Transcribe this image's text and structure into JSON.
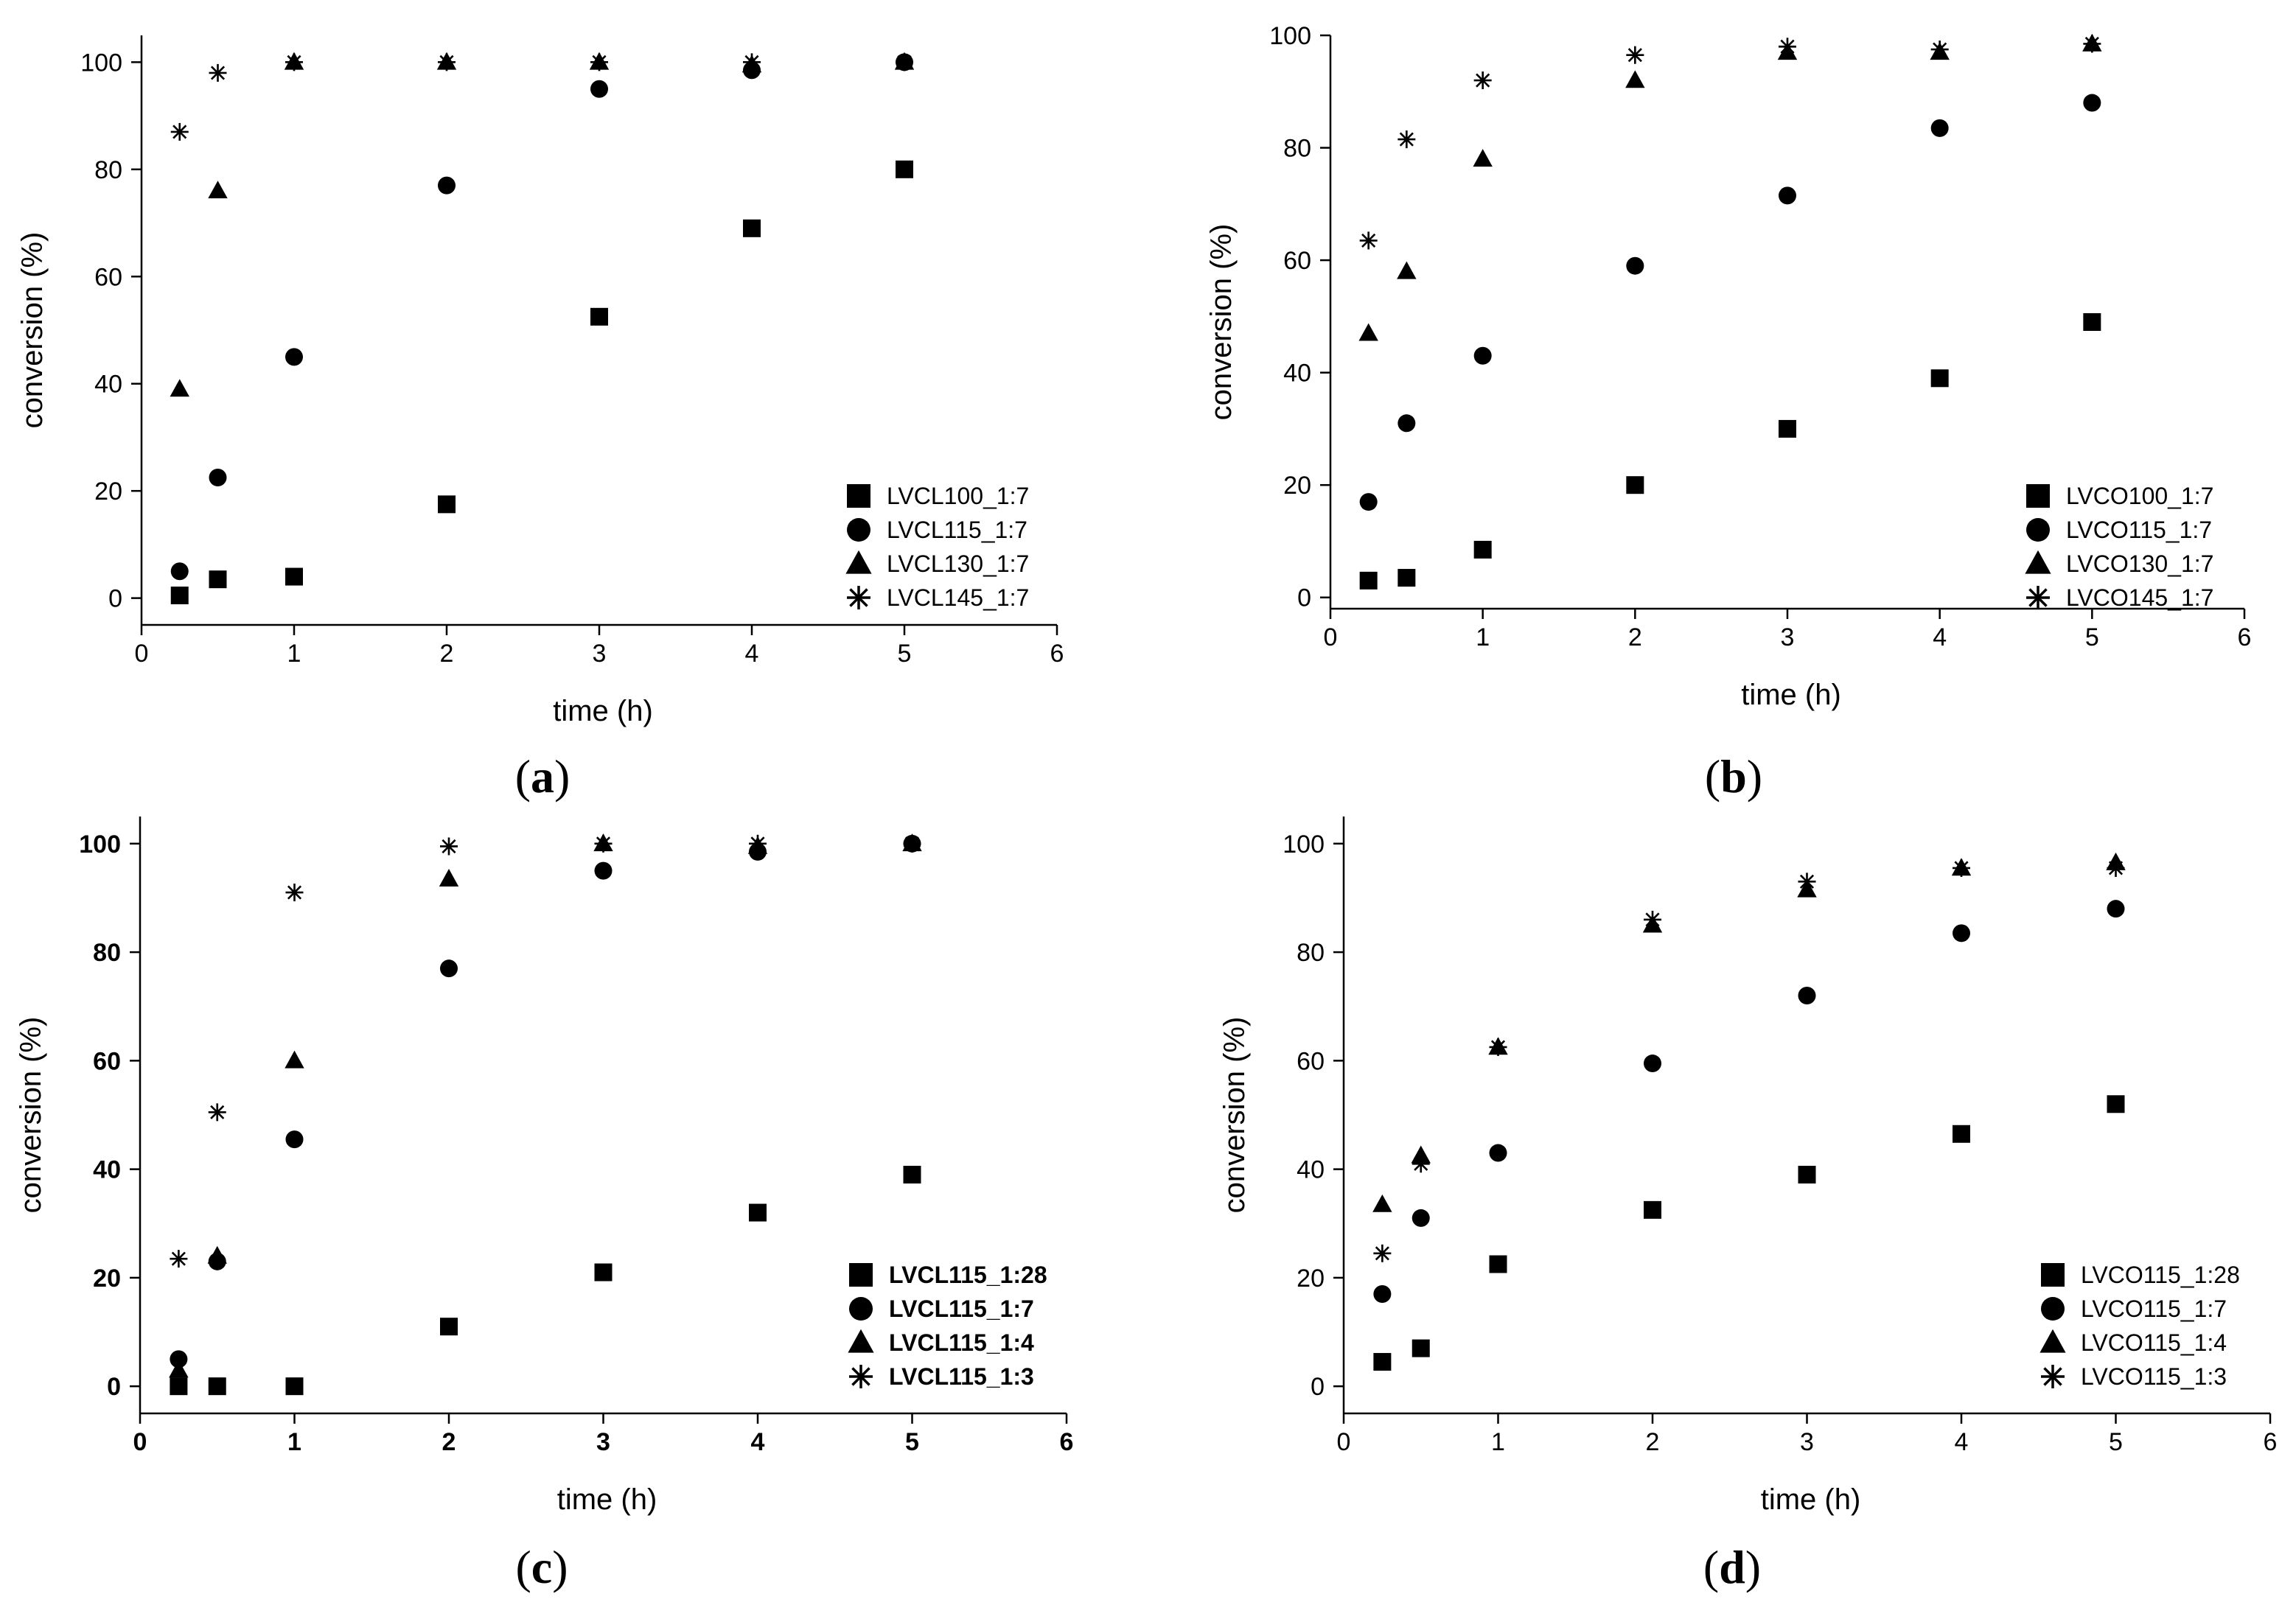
{
  "chart_data": [
    {
      "type": "scatter",
      "panel_label": "(a)",
      "xlabel": "time (h)",
      "ylabel": "conversion (%)",
      "xlim": [
        0,
        6
      ],
      "ylim": [
        -5,
        105
      ],
      "xticks": [
        0,
        1,
        2,
        3,
        4,
        5,
        6
      ],
      "yticks": [
        0,
        20,
        40,
        60,
        80,
        100
      ],
      "legend_position": "bottom-right",
      "grid": false,
      "series": [
        {
          "name": "LVCL100_1:7",
          "marker": "square",
          "x": [
            0.25,
            0.5,
            1,
            2,
            3,
            4,
            5
          ],
          "y": [
            0.5,
            3.5,
            4,
            17.5,
            52.5,
            69,
            80
          ]
        },
        {
          "name": "LVCL115_1:7",
          "marker": "circle",
          "x": [
            0.25,
            0.5,
            1,
            2,
            3,
            4,
            5
          ],
          "y": [
            5,
            22.5,
            45,
            77,
            95,
            98.5,
            100
          ]
        },
        {
          "name": "LVCL130_1:7",
          "marker": "triangle",
          "x": [
            0.25,
            0.5,
            1,
            2,
            3,
            4,
            5
          ],
          "y": [
            39,
            76,
            100,
            100,
            100,
            99.5,
            100
          ]
        },
        {
          "name": "LVCL145_1:7",
          "marker": "asterisk",
          "x": [
            0.25,
            0.5,
            1,
            2,
            3,
            4,
            5
          ],
          "y": [
            87,
            98,
            100,
            100,
            100,
            100,
            100
          ]
        }
      ]
    },
    {
      "type": "scatter",
      "panel_label": "(b)",
      "xlabel": "time (h)",
      "ylabel": "conversion (%)",
      "xlim": [
        0,
        6
      ],
      "ylim": [
        -2,
        100
      ],
      "xticks": [
        0,
        1,
        2,
        3,
        4,
        5,
        6
      ],
      "yticks": [
        0,
        20,
        40,
        60,
        80,
        100
      ],
      "legend_position": "bottom-right",
      "grid": false,
      "series": [
        {
          "name": "LVCO100_1:7",
          "marker": "square",
          "x": [
            0.25,
            0.5,
            1,
            2,
            3,
            4,
            5
          ],
          "y": [
            3,
            3.5,
            8.5,
            20,
            30,
            39,
            49
          ]
        },
        {
          "name": "LVCO115_1:7",
          "marker": "circle",
          "x": [
            0.25,
            0.5,
            1,
            2,
            3,
            4,
            5
          ],
          "y": [
            17,
            31,
            43,
            59,
            71.5,
            83.5,
            88
          ]
        },
        {
          "name": "LVCO130_1:7",
          "marker": "triangle",
          "x": [
            0.25,
            0.5,
            1,
            2,
            3,
            4,
            5
          ],
          "y": [
            47,
            58,
            78,
            92,
            97,
            97,
            98.5
          ]
        },
        {
          "name": "LVCO145_1:7",
          "marker": "asterisk",
          "x": [
            0.25,
            0.5,
            1,
            2,
            3,
            4,
            5
          ],
          "y": [
            63.5,
            81.5,
            92,
            96.5,
            98,
            97.5,
            98.5
          ]
        }
      ]
    },
    {
      "type": "scatter",
      "panel_label": "(c)",
      "xlabel": "time (h)",
      "ylabel": "conversion (%)",
      "xlim": [
        0,
        6
      ],
      "ylim": [
        -5,
        105
      ],
      "xticks": [
        0,
        1,
        2,
        3,
        4,
        5,
        6
      ],
      "yticks": [
        0,
        20,
        40,
        60,
        80,
        100
      ],
      "legend_position": "bottom-right",
      "grid": false,
      "series": [
        {
          "name": "LVCL115_1:28",
          "marker": "square",
          "x": [
            0.25,
            0.5,
            1,
            2,
            3,
            4,
            5
          ],
          "y": [
            0,
            0,
            0,
            11,
            21,
            32,
            39
          ]
        },
        {
          "name": "LVCL115_1:7",
          "marker": "circle",
          "x": [
            0.25,
            0.5,
            1,
            2,
            3,
            4,
            5
          ],
          "y": [
            5,
            23,
            45.5,
            77,
            95,
            98.5,
            100
          ]
        },
        {
          "name": "LVCL115_1:4",
          "marker": "triangle",
          "x": [
            0.25,
            0.5,
            1,
            2,
            3,
            4,
            5
          ],
          "y": [
            3,
            24,
            60,
            93.5,
            100,
            99.5,
            100
          ]
        },
        {
          "name": "LVCL115_1:3",
          "marker": "asterisk",
          "x": [
            0.25,
            0.5,
            1,
            2,
            3,
            4,
            5
          ],
          "y": [
            23.5,
            50.5,
            91,
            99.5,
            100,
            100,
            100
          ]
        }
      ]
    },
    {
      "type": "scatter",
      "panel_label": "(d)",
      "xlabel": "time (h)",
      "ylabel": "conversion (%)",
      "xlim": [
        0,
        6
      ],
      "ylim": [
        -5,
        105
      ],
      "xticks": [
        0,
        1,
        2,
        3,
        4,
        5,
        6
      ],
      "yticks": [
        0,
        20,
        40,
        60,
        80,
        100
      ],
      "legend_position": "bottom-right",
      "grid": false,
      "series": [
        {
          "name": "LVCO115_1:28",
          "marker": "square",
          "x": [
            0.25,
            0.5,
            1,
            2,
            3,
            4,
            5
          ],
          "y": [
            4.5,
            7,
            22.5,
            32.5,
            39,
            46.5,
            52
          ]
        },
        {
          "name": "LVCO115_1:7",
          "marker": "circle",
          "x": [
            0.25,
            0.5,
            1,
            2,
            3,
            4,
            5
          ],
          "y": [
            17,
            31,
            43,
            59.5,
            72,
            83.5,
            88
          ]
        },
        {
          "name": "LVCO115_1:4",
          "marker": "triangle",
          "x": [
            0.25,
            0.5,
            1,
            2,
            3,
            4,
            5
          ],
          "y": [
            33.5,
            42.5,
            62.5,
            85,
            91.5,
            95.5,
            96.5
          ]
        },
        {
          "name": "LVCO115_1:3",
          "marker": "asterisk",
          "x": [
            0.25,
            0.5,
            1,
            2,
            3,
            4,
            5
          ],
          "y": [
            24.5,
            41,
            62.5,
            86,
            93,
            95.5,
            95.5
          ]
        }
      ]
    }
  ]
}
